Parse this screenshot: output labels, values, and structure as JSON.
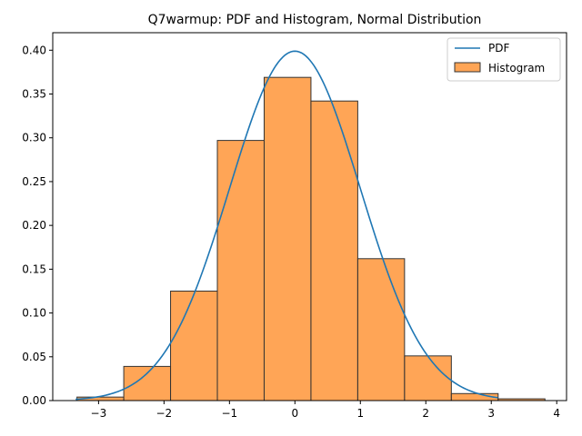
{
  "chart_data": {
    "type": "bar",
    "title": "Q7warmup: PDF and Histogram, Normal Distribution",
    "xlabel": "",
    "ylabel": "",
    "xlim": [
      -3.7,
      4.15
    ],
    "ylim": [
      0,
      0.42
    ],
    "grid": false,
    "legend_position": "top-right",
    "xticks": [
      -3,
      -2,
      -1,
      0,
      1,
      2,
      3,
      4
    ],
    "xtick_labels": [
      "−3",
      "−2",
      "−1",
      "0",
      "1",
      "2",
      "3",
      "4"
    ],
    "yticks": [
      0.0,
      0.05,
      0.1,
      0.15,
      0.2,
      0.25,
      0.3,
      0.35,
      0.4
    ],
    "ytick_labels": [
      "0.00",
      "0.05",
      "0.10",
      "0.15",
      "0.20",
      "0.25",
      "0.30",
      "0.35",
      "0.40"
    ],
    "series": [
      {
        "name": "PDF",
        "type": "line",
        "color": "#1f77b4",
        "function": "standard normal density",
        "x_range": [
          -3.35,
          3.1
        ]
      },
      {
        "name": "Histogram",
        "type": "bar",
        "color": "#ff7f0e",
        "edgecolor": "#333333",
        "bin_edges": [
          -3.33,
          -2.615,
          -1.9,
          -1.185,
          -0.47,
          0.245,
          0.96,
          1.675,
          2.39,
          3.105,
          3.82
        ],
        "values": [
          0.004,
          0.039,
          0.125,
          0.297,
          0.369,
          0.342,
          0.162,
          0.051,
          0.008,
          0.002
        ]
      }
    ]
  }
}
